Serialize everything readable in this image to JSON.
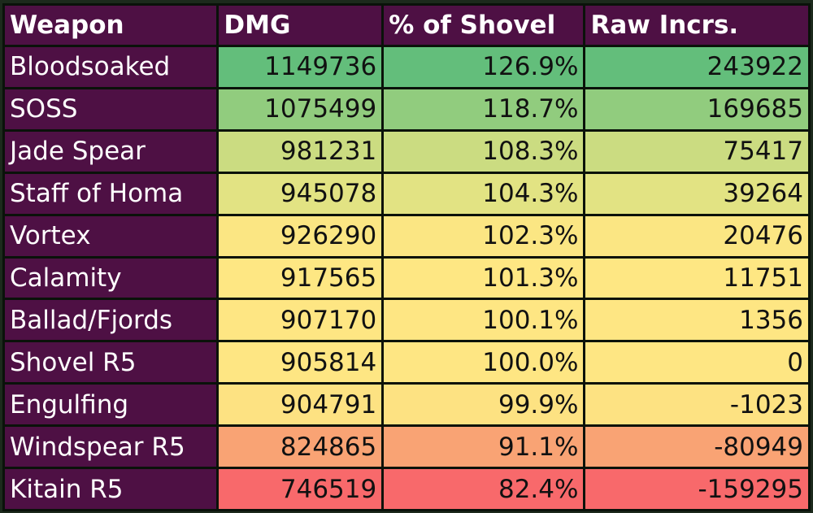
{
  "chart_data": {
    "type": "table",
    "columns": [
      "Weapon",
      "DMG",
      "% of Shovel",
      "Raw Incrs."
    ],
    "rows": [
      {
        "weapon": "Bloodsoaked",
        "dmg": "1149736",
        "pct": "126.9%",
        "raw": "243922",
        "color": "#63be7b"
      },
      {
        "weapon": "SOSS",
        "dmg": "1075499",
        "pct": "118.7%",
        "raw": "169685",
        "color": "#91cc7e"
      },
      {
        "weapon": "Jade Spear",
        "dmg": "981231",
        "pct": "108.3%",
        "raw": "75417",
        "color": "#cbdc81"
      },
      {
        "weapon": "Staff of Homa",
        "dmg": "945078",
        "pct": "104.3%",
        "raw": "39264",
        "color": "#e2e383"
      },
      {
        "weapon": "Vortex",
        "dmg": "926290",
        "pct": "102.3%",
        "raw": "20476",
        "color": "#fbe683"
      },
      {
        "weapon": "Calamity",
        "dmg": "917565",
        "pct": "101.3%",
        "raw": "11751",
        "color": "#fee783"
      },
      {
        "weapon": "Ballad/Fjords",
        "dmg": "907170",
        "pct": "100.1%",
        "raw": "1356",
        "color": "#fee683"
      },
      {
        "weapon": "Shovel R5",
        "dmg": "905814",
        "pct": "100.0%",
        "raw": "0",
        "color": "#fee683"
      },
      {
        "weapon": "Engulfing",
        "dmg": "904791",
        "pct": "99.9%",
        "raw": "-1023",
        "color": "#fde282"
      },
      {
        "weapon": "Windspear R5",
        "dmg": "824865",
        "pct": "91.1%",
        "raw": "-80949",
        "color": "#f9a374"
      },
      {
        "weapon": "Kitain R5",
        "dmg": "746519",
        "pct": "82.4%",
        "raw": "-159295",
        "color": "#f8696b"
      }
    ]
  }
}
